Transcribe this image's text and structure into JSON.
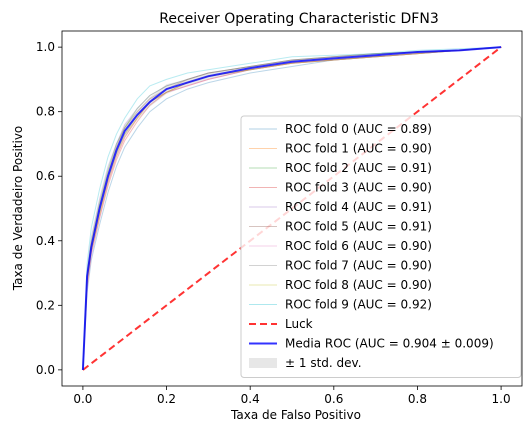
{
  "chart_data": {
    "type": "line",
    "title": "Receiver Operating Characteristic DFN3",
    "xlabel": "Taxa de Falso Positivo",
    "ylabel": "Taxa de Verdadeiro Positivo",
    "xlim": [
      -0.05,
      1.05
    ],
    "ylim": [
      -0.05,
      1.05
    ],
    "xticks": [
      0.0,
      0.2,
      0.4,
      0.6,
      0.8,
      1.0
    ],
    "yticks": [
      0.0,
      0.2,
      0.4,
      0.6,
      0.8,
      1.0
    ],
    "xtick_labels": [
      "0.0",
      "0.2",
      "0.4",
      "0.6",
      "0.8",
      "1.0"
    ],
    "ytick_labels": [
      "0.0",
      "0.2",
      "0.4",
      "0.6",
      "0.8",
      "1.0"
    ],
    "grid": false,
    "legend_position": "lower-right",
    "series": [
      {
        "name": "ROC fold 0 (AUC = 0.89)",
        "color": "#1f77b4",
        "x": [
          0,
          0.01,
          0.02,
          0.04,
          0.06,
          0.08,
          0.1,
          0.13,
          0.16,
          0.2,
          0.25,
          0.3,
          0.4,
          0.5,
          0.6,
          0.7,
          0.8,
          0.9,
          1.0
        ],
        "y": [
          0,
          0.24,
          0.34,
          0.45,
          0.55,
          0.63,
          0.69,
          0.75,
          0.8,
          0.84,
          0.87,
          0.89,
          0.92,
          0.94,
          0.96,
          0.97,
          0.98,
          0.99,
          1.0
        ]
      },
      {
        "name": "ROC fold 1 (AUC = 0.90)",
        "color": "#ff7f0e",
        "x": [
          0,
          0.01,
          0.02,
          0.04,
          0.06,
          0.08,
          0.1,
          0.13,
          0.16,
          0.2,
          0.25,
          0.3,
          0.4,
          0.5,
          0.6,
          0.7,
          0.8,
          0.9,
          1.0
        ],
        "y": [
          0,
          0.27,
          0.37,
          0.48,
          0.58,
          0.66,
          0.72,
          0.78,
          0.83,
          0.86,
          0.89,
          0.91,
          0.93,
          0.95,
          0.96,
          0.97,
          0.98,
          0.99,
          1.0
        ]
      },
      {
        "name": "ROC fold 2 (AUC = 0.91)",
        "color": "#2ca02c",
        "x": [
          0,
          0.01,
          0.02,
          0.04,
          0.06,
          0.08,
          0.1,
          0.13,
          0.16,
          0.2,
          0.25,
          0.3,
          0.4,
          0.5,
          0.6,
          0.7,
          0.8,
          0.9,
          1.0
        ],
        "y": [
          0,
          0.3,
          0.4,
          0.52,
          0.62,
          0.7,
          0.75,
          0.81,
          0.85,
          0.88,
          0.9,
          0.92,
          0.94,
          0.96,
          0.97,
          0.98,
          0.985,
          0.99,
          1.0
        ]
      },
      {
        "name": "ROC fold 3 (AUC = 0.90)",
        "color": "#d62728",
        "x": [
          0,
          0.01,
          0.02,
          0.04,
          0.06,
          0.08,
          0.1,
          0.13,
          0.16,
          0.2,
          0.25,
          0.3,
          0.4,
          0.5,
          0.6,
          0.7,
          0.8,
          0.9,
          1.0
        ],
        "y": [
          0,
          0.26,
          0.36,
          0.47,
          0.57,
          0.65,
          0.71,
          0.77,
          0.82,
          0.86,
          0.88,
          0.9,
          0.93,
          0.95,
          0.96,
          0.97,
          0.98,
          0.99,
          1.0
        ]
      },
      {
        "name": "ROC fold 4 (AUC = 0.91)",
        "color": "#9467bd",
        "x": [
          0,
          0.01,
          0.02,
          0.04,
          0.06,
          0.08,
          0.1,
          0.13,
          0.16,
          0.2,
          0.25,
          0.3,
          0.4,
          0.5,
          0.6,
          0.7,
          0.8,
          0.9,
          1.0
        ],
        "y": [
          0,
          0.31,
          0.41,
          0.53,
          0.63,
          0.7,
          0.76,
          0.81,
          0.85,
          0.88,
          0.9,
          0.92,
          0.94,
          0.96,
          0.97,
          0.98,
          0.985,
          0.99,
          1.0
        ]
      },
      {
        "name": "ROC fold 5 (AUC = 0.91)",
        "color": "#8c564b",
        "x": [
          0,
          0.01,
          0.02,
          0.04,
          0.06,
          0.08,
          0.1,
          0.13,
          0.16,
          0.2,
          0.25,
          0.3,
          0.4,
          0.5,
          0.6,
          0.7,
          0.8,
          0.9,
          1.0
        ],
        "y": [
          0,
          0.29,
          0.39,
          0.51,
          0.61,
          0.69,
          0.75,
          0.8,
          0.84,
          0.87,
          0.9,
          0.92,
          0.94,
          0.96,
          0.97,
          0.98,
          0.985,
          0.99,
          1.0
        ]
      },
      {
        "name": "ROC fold 6 (AUC = 0.90)",
        "color": "#e377c2",
        "x": [
          0,
          0.01,
          0.02,
          0.04,
          0.06,
          0.08,
          0.1,
          0.13,
          0.16,
          0.2,
          0.25,
          0.3,
          0.4,
          0.5,
          0.6,
          0.7,
          0.8,
          0.9,
          1.0
        ],
        "y": [
          0,
          0.25,
          0.35,
          0.47,
          0.58,
          0.66,
          0.72,
          0.78,
          0.83,
          0.86,
          0.88,
          0.9,
          0.93,
          0.95,
          0.96,
          0.97,
          0.98,
          0.99,
          1.0
        ]
      },
      {
        "name": "ROC fold 7 (AUC = 0.90)",
        "color": "#7f7f7f",
        "x": [
          0,
          0.01,
          0.02,
          0.04,
          0.06,
          0.08,
          0.1,
          0.13,
          0.16,
          0.2,
          0.25,
          0.3,
          0.4,
          0.5,
          0.6,
          0.7,
          0.8,
          0.9,
          1.0
        ],
        "y": [
          0,
          0.28,
          0.38,
          0.49,
          0.59,
          0.67,
          0.73,
          0.79,
          0.83,
          0.86,
          0.89,
          0.91,
          0.93,
          0.95,
          0.96,
          0.97,
          0.98,
          0.99,
          1.0
        ]
      },
      {
        "name": "ROC fold 8 (AUC = 0.90)",
        "color": "#bcbd22",
        "x": [
          0,
          0.01,
          0.02,
          0.04,
          0.06,
          0.08,
          0.1,
          0.13,
          0.16,
          0.2,
          0.25,
          0.3,
          0.4,
          0.5,
          0.6,
          0.7,
          0.8,
          0.9,
          1.0
        ],
        "y": [
          0,
          0.27,
          0.37,
          0.48,
          0.59,
          0.67,
          0.73,
          0.78,
          0.83,
          0.86,
          0.89,
          0.91,
          0.93,
          0.95,
          0.96,
          0.97,
          0.98,
          0.99,
          1.0
        ]
      },
      {
        "name": "ROC fold 9 (AUC = 0.92)",
        "color": "#17becf",
        "x": [
          0,
          0.01,
          0.02,
          0.04,
          0.06,
          0.08,
          0.1,
          0.13,
          0.16,
          0.2,
          0.25,
          0.3,
          0.4,
          0.5,
          0.6,
          0.7,
          0.8,
          0.9,
          1.0
        ],
        "y": [
          0,
          0.33,
          0.44,
          0.56,
          0.66,
          0.73,
          0.78,
          0.84,
          0.88,
          0.9,
          0.92,
          0.93,
          0.95,
          0.97,
          0.975,
          0.98,
          0.99,
          0.995,
          1.0
        ]
      },
      {
        "name": "Luck",
        "color": "#ff0000",
        "dashed": true,
        "x": [
          0,
          1
        ],
        "y": [
          0,
          1
        ]
      },
      {
        "name": "Media ROC (AUC = 0.904 ± 0.009)",
        "color": "#0000ff",
        "x": [
          0,
          0.01,
          0.02,
          0.04,
          0.06,
          0.08,
          0.1,
          0.13,
          0.16,
          0.2,
          0.25,
          0.3,
          0.4,
          0.5,
          0.6,
          0.7,
          0.8,
          0.9,
          1.0
        ],
        "y": [
          0,
          0.29,
          0.38,
          0.5,
          0.6,
          0.68,
          0.74,
          0.79,
          0.83,
          0.87,
          0.89,
          0.91,
          0.935,
          0.955,
          0.965,
          0.975,
          0.985,
          0.99,
          1.0
        ]
      }
    ],
    "std_band": {
      "name": "± 1 std. dev.",
      "color": "#bbbbbb",
      "x": [
        0,
        0.01,
        0.02,
        0.04,
        0.06,
        0.08,
        0.1,
        0.13,
        0.16,
        0.2,
        0.25,
        0.3,
        0.4,
        0.5,
        0.6,
        0.7,
        0.8,
        0.9,
        1.0
      ],
      "lower": [
        0,
        0.27,
        0.36,
        0.48,
        0.58,
        0.66,
        0.72,
        0.775,
        0.815,
        0.855,
        0.88,
        0.9,
        0.928,
        0.95,
        0.96,
        0.972,
        0.982,
        0.988,
        1.0
      ],
      "upper": [
        0,
        0.31,
        0.4,
        0.52,
        0.62,
        0.7,
        0.76,
        0.805,
        0.845,
        0.885,
        0.9,
        0.92,
        0.942,
        0.96,
        0.97,
        0.978,
        0.988,
        0.992,
        1.0
      ]
    }
  }
}
